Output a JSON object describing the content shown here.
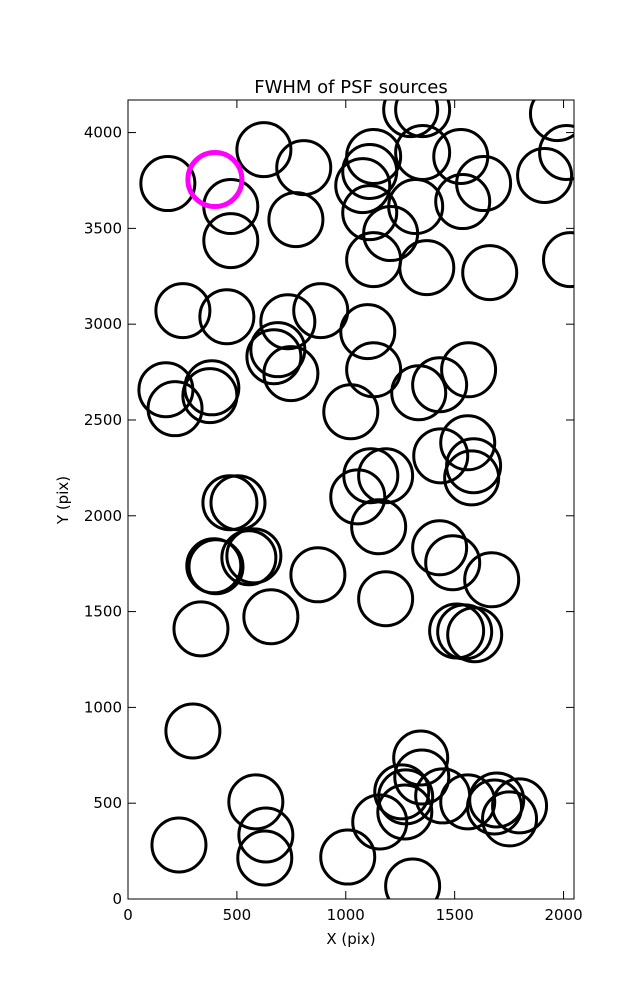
{
  "chart_data": {
    "type": "scatter",
    "title": "FWHM of PSF sources",
    "x_label": "X (pix)",
    "y_label": "Y (pix)",
    "xlim": [
      0,
      2048
    ],
    "ylim": [
      0,
      4170
    ],
    "xticks": [
      0,
      500,
      1000,
      1500,
      2000
    ],
    "yticks": [
      0,
      500,
      1000,
      1500,
      2000,
      2500,
      3000,
      3500,
      4000
    ],
    "series": [
      {
        "color": "#000000",
        "x": [
          183,
          472,
          472,
          624,
          807,
          771,
          1128,
          1110,
          1078,
          1110,
          1206,
          1128,
          1298,
          1353,
          1353,
          1321,
          1372,
          1528,
          1537,
          1633,
          1661,
          1972,
          2014,
          1913,
          2032,
          252,
          454,
          734,
          885,
          688,
          670,
          748,
          1101,
          1128,
          174,
          216,
          385,
          376,
          1023,
          1335,
          1431,
          1564,
          1436,
          1560,
          1587,
          1578,
          1115,
          1183,
          1055,
          1151,
          468,
          505,
          578,
          555,
          404,
          394,
          872,
          1183,
          656,
          335,
          1431,
          1491,
          1670,
          1509,
          1546,
          1592,
          298,
          1344,
          1349,
          1257,
          1275,
          1271,
          1156,
          1445,
          1560,
          1693,
          1683,
          1798,
          1752,
          587,
          633,
          628,
          234,
          1009,
          1307
        ],
        "y": [
          3734,
          3614,
          3436,
          3911,
          3817,
          3546,
          3875,
          3797,
          3723,
          3582,
          3473,
          3337,
          4120,
          4120,
          3896,
          3614,
          3295,
          3875,
          3640,
          3734,
          3269,
          4099,
          3896,
          3776,
          3337,
          3071,
          3039,
          3013,
          3071,
          2867,
          2830,
          2742,
          2961,
          2762,
          2658,
          2559,
          2668,
          2627,
          2543,
          2642,
          2684,
          2762,
          2313,
          2381,
          2261,
          2198,
          2209,
          2209,
          2099,
          1943,
          2068,
          2068,
          1791,
          1781,
          1734,
          1739,
          1692,
          1567,
          1473,
          1410,
          1833,
          1755,
          1666,
          1399,
          1394,
          1379,
          877,
          736,
          637,
          559,
          533,
          454,
          402,
          538,
          507,
          517,
          480,
          486,
          418,
          507,
          334,
          214,
          282,
          219,
          68
        ]
      },
      {
        "color": "#ff00ff",
        "x": [
          399
        ],
        "y": [
          3755
        ]
      }
    ]
  }
}
